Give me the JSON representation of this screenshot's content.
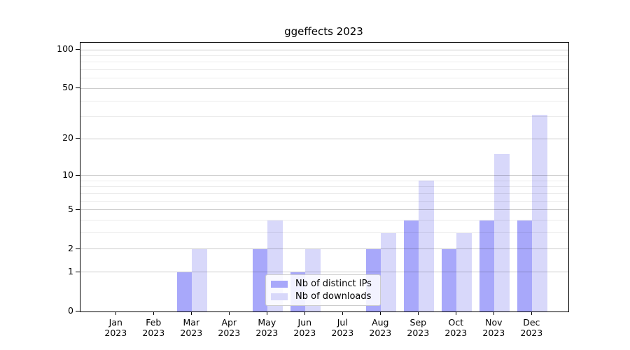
{
  "chart_data": {
    "type": "bar",
    "title": "ggeffects 2023",
    "x_month_labels": [
      "Jan",
      "Feb",
      "Mar",
      "Apr",
      "May",
      "Jun",
      "Jul",
      "Aug",
      "Sep",
      "Oct",
      "Nov",
      "Dec"
    ],
    "x_year_label": "2023",
    "series": [
      {
        "name": "Nb of distinct IPs",
        "color": "#a8a8fa",
        "values": [
          0,
          0,
          1,
          0,
          2,
          1,
          0,
          2,
          4,
          2,
          4,
          4
        ]
      },
      {
        "name": "Nb of downloads",
        "color": "#d8d8fa",
        "values": [
          0,
          0,
          2,
          0,
          4,
          2,
          0,
          3,
          9,
          3,
          15,
          31
        ]
      }
    ],
    "y_axis": {
      "scale": "log1p",
      "ylim": [
        0,
        100
      ],
      "major_ticks": [
        0,
        1,
        2,
        5,
        10,
        20,
        50,
        100
      ],
      "minor_gridlines": [
        3,
        4,
        6,
        7,
        8,
        9,
        30,
        40,
        60,
        70,
        80,
        90
      ]
    },
    "legend": {
      "entries": [
        "Nb of distinct IPs",
        "Nb of downloads"
      ],
      "position": "lower center"
    },
    "grid": true
  }
}
